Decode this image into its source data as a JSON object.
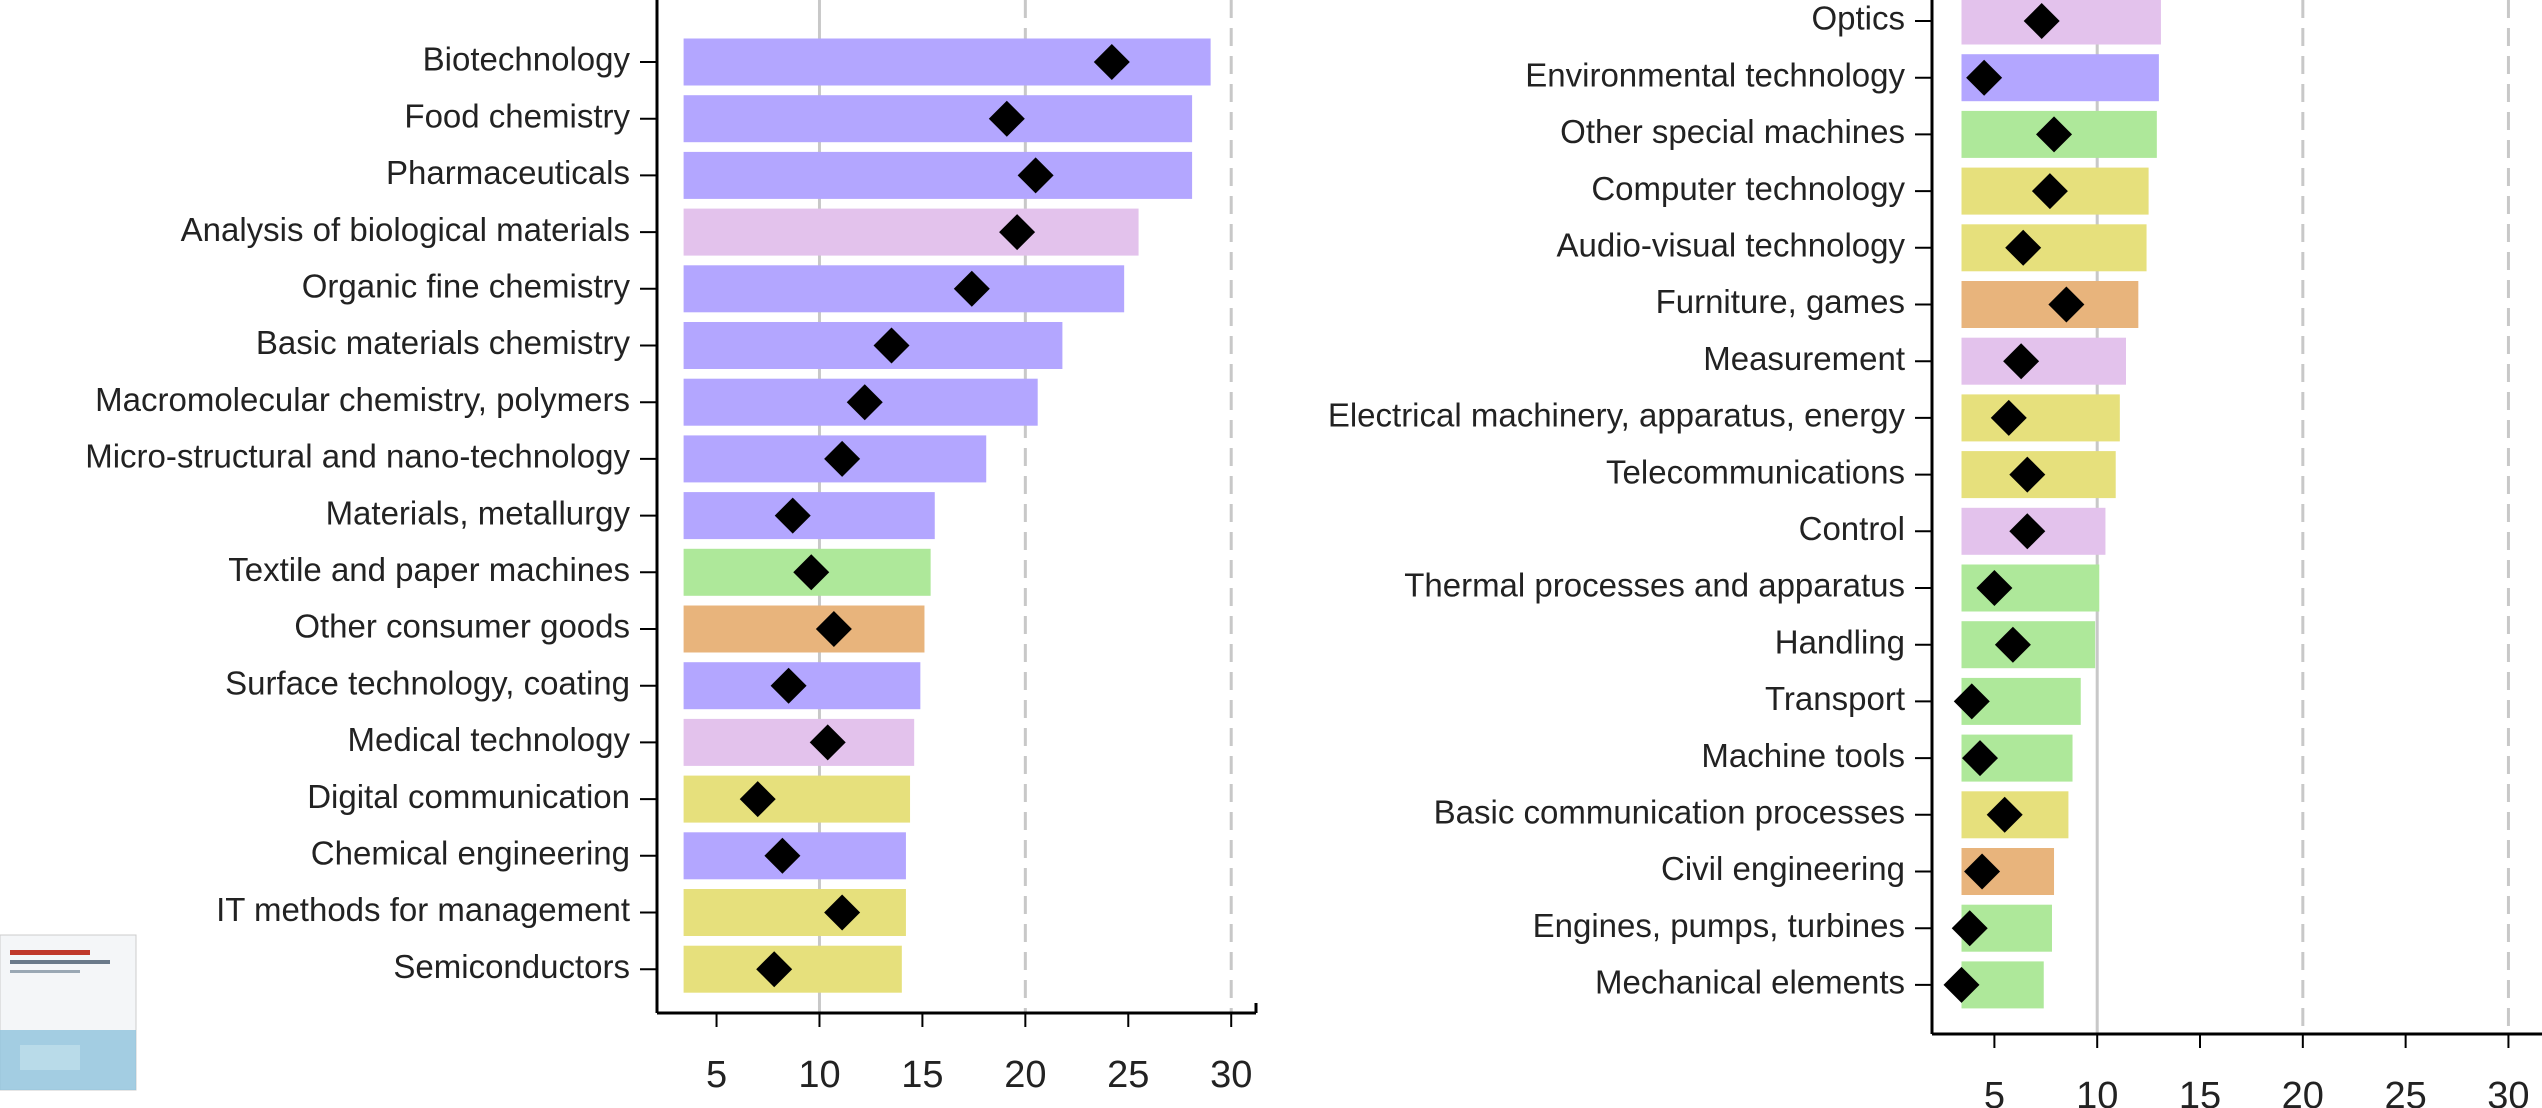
{
  "chart_data": [
    {
      "type": "bar",
      "orientation": "horizontal",
      "categories": [
        "Biotechnology",
        "Food chemistry",
        "Pharmaceuticals",
        "Analysis of biological materials",
        "Organic fine chemistry",
        "Basic materials chemistry",
        "Macromolecular chemistry, polymers",
        "Micro-structural and nano-technology",
        "Materials, metallurgy",
        "Textile and paper machines",
        "Other consumer goods",
        "Surface technology, coating",
        "Medical technology",
        "Digital communication",
        "Chemical engineering",
        "IT methods for management",
        "Semiconductors"
      ],
      "values": [
        29.0,
        28.1,
        28.1,
        25.5,
        24.8,
        21.8,
        20.6,
        18.1,
        15.6,
        15.4,
        15.1,
        14.9,
        14.6,
        14.4,
        14.2,
        14.2,
        14.0
      ],
      "marker_values": [
        24.2,
        19.1,
        20.5,
        19.6,
        17.4,
        13.5,
        12.2,
        11.1,
        8.7,
        9.6,
        10.7,
        8.5,
        10.4,
        7.0,
        8.2,
        11.1,
        7.8
      ],
      "colors": [
        "#b3a6ff",
        "#b3a6ff",
        "#b3a6ff",
        "#e3c2ec",
        "#b3a6ff",
        "#b3a6ff",
        "#b3a6ff",
        "#b3a6ff",
        "#b3a6ff",
        "#aee89a",
        "#e8b47c",
        "#b3a6ff",
        "#e3c2ec",
        "#e6e07c",
        "#b3a6ff",
        "#e6e07c",
        "#e6e07c"
      ],
      "marker_color": "#000000",
      "xlim": [
        3.4,
        31
      ],
      "xticks": [
        5,
        10,
        15,
        20,
        25,
        30
      ],
      "xgrid": [
        10,
        20,
        30
      ]
    },
    {
      "type": "bar",
      "orientation": "horizontal",
      "categories": [
        "Optics",
        "Environmental technology",
        "Other special machines",
        "Computer technology",
        "Audio-visual technology",
        "Furniture, games",
        "Measurement",
        "Electrical machinery, apparatus, energy",
        "Telecommunications",
        "Control",
        "Thermal processes and apparatus",
        "Handling",
        "Transport",
        "Machine tools",
        "Basic communication processes",
        "Civil engineering",
        "Engines, pumps, turbines",
        "Mechanical elements"
      ],
      "values": [
        13.1,
        13.0,
        12.9,
        12.5,
        12.4,
        12.0,
        11.4,
        11.1,
        10.9,
        10.4,
        10.1,
        9.9,
        9.2,
        8.8,
        8.6,
        7.9,
        7.8,
        7.4
      ],
      "marker_values": [
        7.3,
        4.5,
        7.9,
        7.7,
        6.4,
        8.5,
        6.3,
        5.7,
        6.6,
        6.6,
        5.0,
        5.9,
        3.9,
        4.3,
        5.5,
        4.4,
        3.8,
        3.4
      ],
      "colors": [
        "#e3c2ec",
        "#b3a6ff",
        "#aee89a",
        "#e6e07c",
        "#e6e07c",
        "#e8b47c",
        "#e3c2ec",
        "#e6e07c",
        "#e6e07c",
        "#e3c2ec",
        "#aee89a",
        "#aee89a",
        "#aee89a",
        "#aee89a",
        "#e6e07c",
        "#e8b47c",
        "#aee89a",
        "#aee89a"
      ],
      "marker_color": "#000000",
      "xlim": [
        3.4,
        31
      ],
      "xticks": [
        5,
        10,
        15,
        20,
        25,
        30
      ],
      "xgrid": [
        10,
        20,
        30
      ]
    }
  ]
}
